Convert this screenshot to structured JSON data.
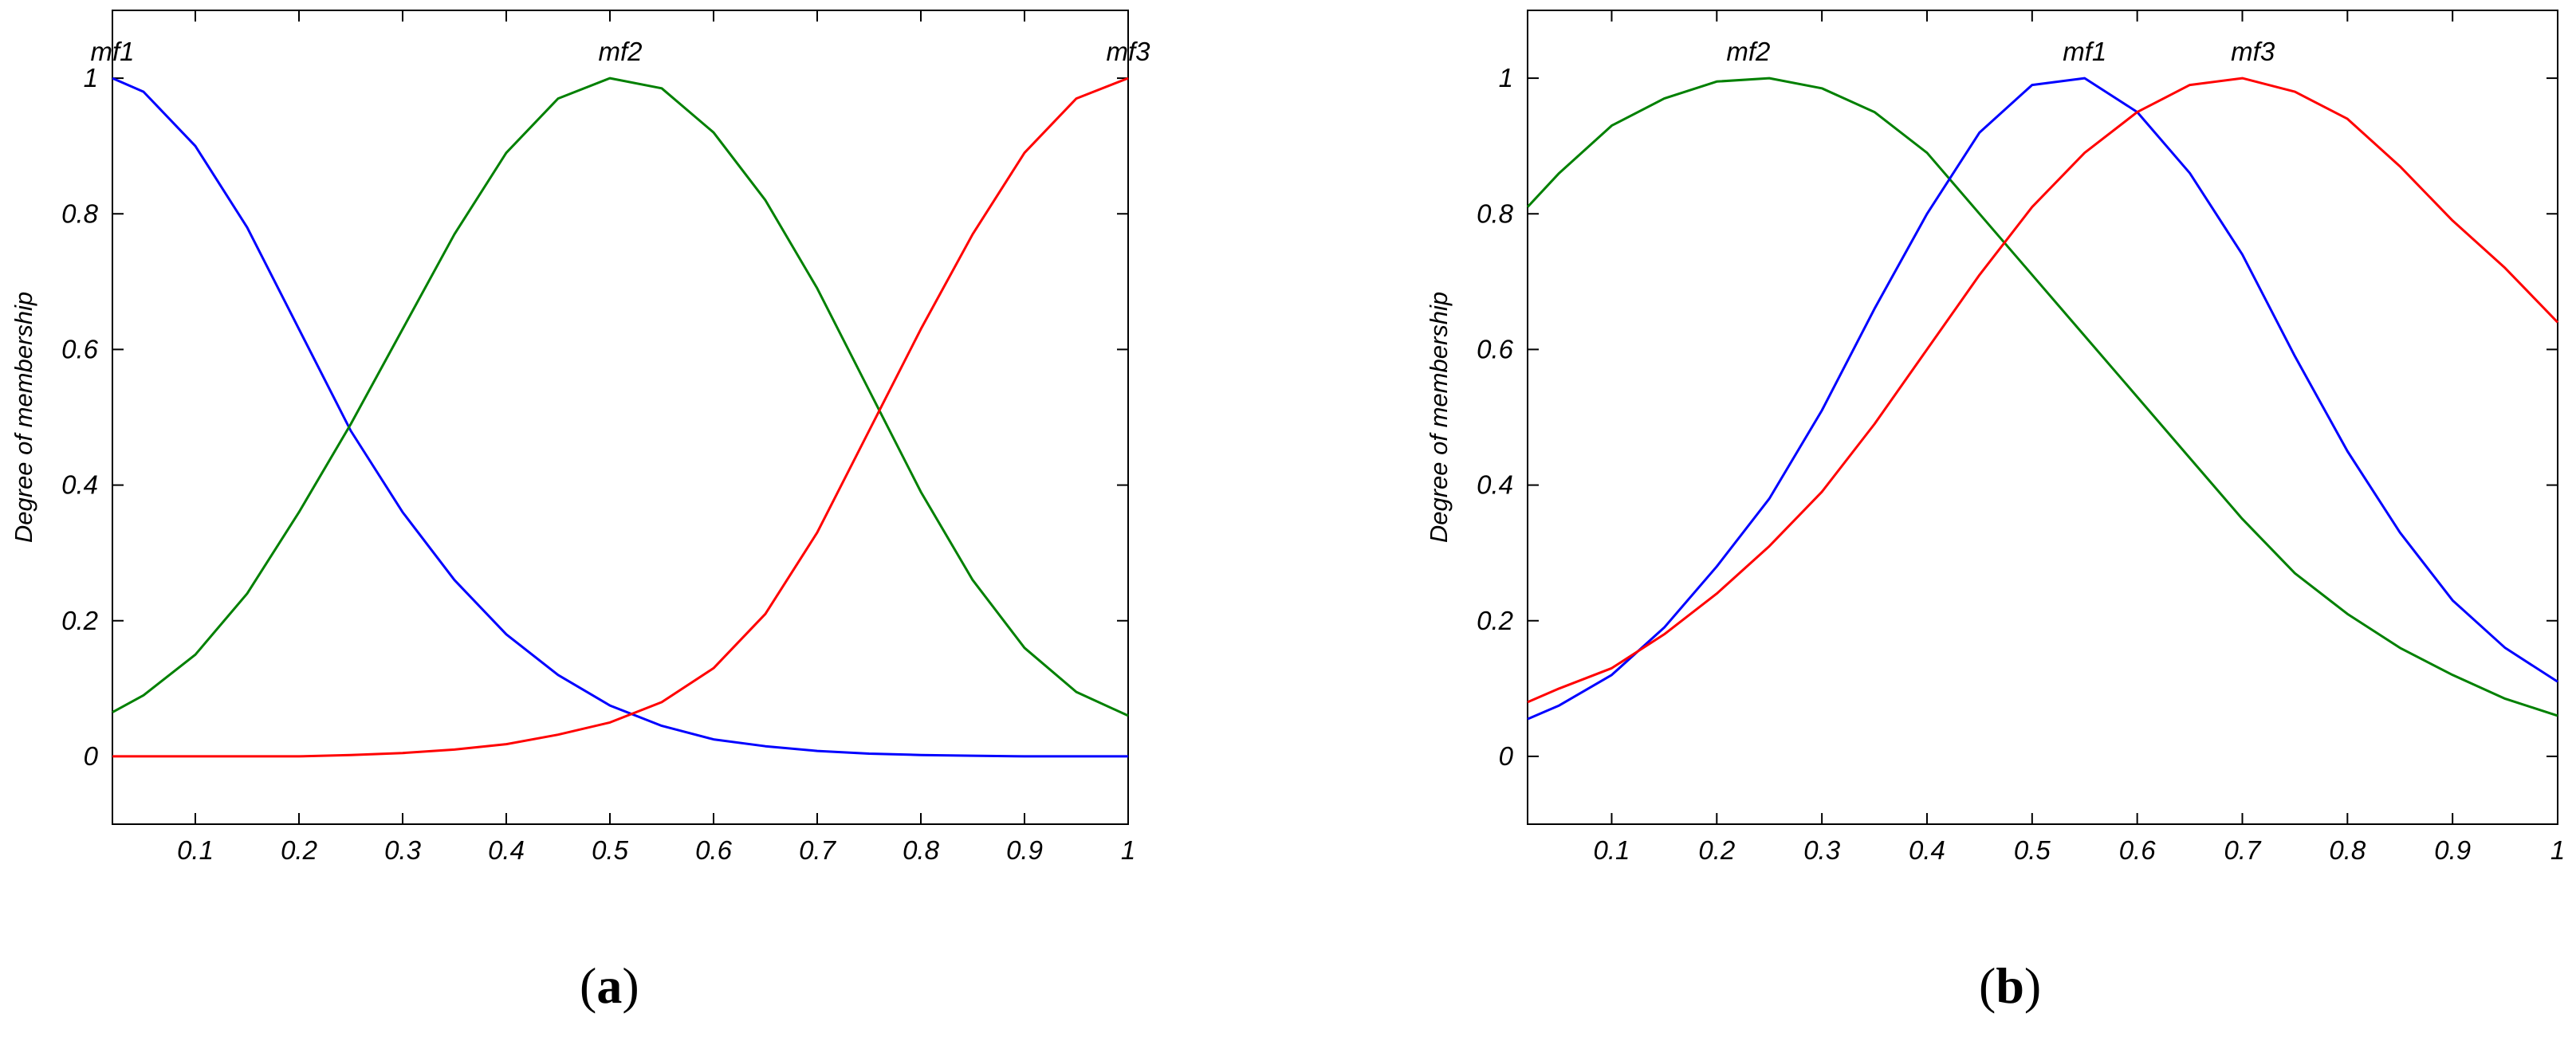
{
  "captions": {
    "a": "a",
    "b": "b"
  },
  "chart_data": [
    {
      "type": "line",
      "panel": "a",
      "title": "",
      "xlabel": "",
      "ylabel": "Degree of membership",
      "xlim": [
        0.02,
        1.0
      ],
      "ylim": [
        -0.1,
        1.1
      ],
      "xticks": [
        0.1,
        0.2,
        0.3,
        0.4,
        0.5,
        0.6,
        0.7,
        0.8,
        0.9,
        1
      ],
      "xtick_labels": [
        "0.1",
        "0.2",
        "0.3",
        "0.4",
        "0.5",
        "0.6",
        "0.7",
        "0.8",
        "0.9",
        "1"
      ],
      "yticks": [
        0,
        0.2,
        0.4,
        0.6,
        0.8,
        1
      ],
      "ytick_labels": [
        "0",
        "0.2",
        "0.4",
        "0.6",
        "0.8",
        "1"
      ],
      "grid": false,
      "series": [
        {
          "name": "mf1",
          "color": "#0000ff",
          "label_at": [
            0.02,
            1.0
          ],
          "x": [
            0.02,
            0.05,
            0.1,
            0.15,
            0.2,
            0.25,
            0.3,
            0.35,
            0.4,
            0.45,
            0.5,
            0.55,
            0.6,
            0.65,
            0.7,
            0.75,
            0.8,
            0.85,
            0.9,
            0.95,
            1.0
          ],
          "y": [
            1.0,
            0.98,
            0.9,
            0.78,
            0.63,
            0.48,
            0.36,
            0.26,
            0.18,
            0.12,
            0.075,
            0.045,
            0.025,
            0.015,
            0.008,
            0.004,
            0.002,
            0.001,
            0.0,
            0.0,
            0.0
          ]
        },
        {
          "name": "mf2",
          "color": "#008000",
          "label_at": [
            0.51,
            1.0
          ],
          "x": [
            0.02,
            0.05,
            0.1,
            0.15,
            0.2,
            0.25,
            0.3,
            0.35,
            0.4,
            0.45,
            0.5,
            0.55,
            0.6,
            0.65,
            0.7,
            0.75,
            0.8,
            0.85,
            0.9,
            0.95,
            1.0
          ],
          "y": [
            0.065,
            0.09,
            0.15,
            0.24,
            0.36,
            0.49,
            0.63,
            0.77,
            0.89,
            0.97,
            1.0,
            0.985,
            0.92,
            0.82,
            0.69,
            0.54,
            0.39,
            0.26,
            0.16,
            0.095,
            0.06
          ]
        },
        {
          "name": "mf3",
          "color": "#ff0000",
          "label_at": [
            1.0,
            1.0
          ],
          "x": [
            0.02,
            0.1,
            0.2,
            0.25,
            0.3,
            0.35,
            0.4,
            0.45,
            0.5,
            0.55,
            0.6,
            0.65,
            0.7,
            0.75,
            0.8,
            0.85,
            0.9,
            0.95,
            1.0
          ],
          "y": [
            0.0,
            0.0,
            0.0,
            0.002,
            0.005,
            0.01,
            0.018,
            0.032,
            0.05,
            0.08,
            0.13,
            0.21,
            0.33,
            0.48,
            0.63,
            0.77,
            0.89,
            0.97,
            1.0
          ]
        }
      ]
    },
    {
      "type": "line",
      "panel": "b",
      "title": "",
      "xlabel": "",
      "ylabel": "Degree of membership",
      "xlim": [
        0.02,
        1.0
      ],
      "ylim": [
        -0.1,
        1.1
      ],
      "xticks": [
        0.1,
        0.2,
        0.3,
        0.4,
        0.5,
        0.6,
        0.7,
        0.8,
        0.9,
        1
      ],
      "xtick_labels": [
        "0.1",
        "0.2",
        "0.3",
        "0.4",
        "0.5",
        "0.6",
        "0.7",
        "0.8",
        "0.9",
        "1"
      ],
      "yticks": [
        0,
        0.2,
        0.4,
        0.6,
        0.8,
        1
      ],
      "ytick_labels": [
        "0",
        "0.2",
        "0.4",
        "0.6",
        "0.8",
        "1"
      ],
      "grid": false,
      "series": [
        {
          "name": "mf2",
          "color": "#008000",
          "label_at": [
            0.23,
            1.0
          ],
          "x": [
            0.02,
            0.05,
            0.1,
            0.15,
            0.2,
            0.25,
            0.3,
            0.35,
            0.4,
            0.45,
            0.5,
            0.55,
            0.6,
            0.65,
            0.7,
            0.75,
            0.8,
            0.85,
            0.9,
            0.95,
            1.0
          ],
          "y": [
            0.81,
            0.86,
            0.93,
            0.97,
            0.995,
            1.0,
            0.985,
            0.95,
            0.89,
            0.8,
            0.71,
            0.62,
            0.53,
            0.44,
            0.35,
            0.27,
            0.21,
            0.16,
            0.12,
            0.085,
            0.06
          ]
        },
        {
          "name": "mf1",
          "color": "#0000ff",
          "label_at": [
            0.55,
            1.0
          ],
          "x": [
            0.02,
            0.05,
            0.1,
            0.15,
            0.2,
            0.25,
            0.3,
            0.35,
            0.4,
            0.45,
            0.5,
            0.55,
            0.6,
            0.65,
            0.7,
            0.75,
            0.8,
            0.85,
            0.9,
            0.95,
            1.0
          ],
          "y": [
            0.055,
            0.075,
            0.12,
            0.19,
            0.28,
            0.38,
            0.51,
            0.66,
            0.8,
            0.92,
            0.99,
            1.0,
            0.95,
            0.86,
            0.74,
            0.59,
            0.45,
            0.33,
            0.23,
            0.16,
            0.11
          ]
        },
        {
          "name": "mf3",
          "color": "#ff0000",
          "label_at": [
            0.71,
            1.0
          ],
          "x": [
            0.02,
            0.05,
            0.1,
            0.15,
            0.2,
            0.25,
            0.3,
            0.35,
            0.4,
            0.45,
            0.5,
            0.55,
            0.6,
            0.65,
            0.7,
            0.75,
            0.8,
            0.85,
            0.9,
            0.95,
            1.0
          ],
          "y": [
            0.08,
            0.1,
            0.13,
            0.18,
            0.24,
            0.31,
            0.39,
            0.49,
            0.6,
            0.71,
            0.81,
            0.89,
            0.95,
            0.99,
            1.0,
            0.98,
            0.94,
            0.87,
            0.79,
            0.72,
            0.64
          ]
        }
      ]
    }
  ]
}
